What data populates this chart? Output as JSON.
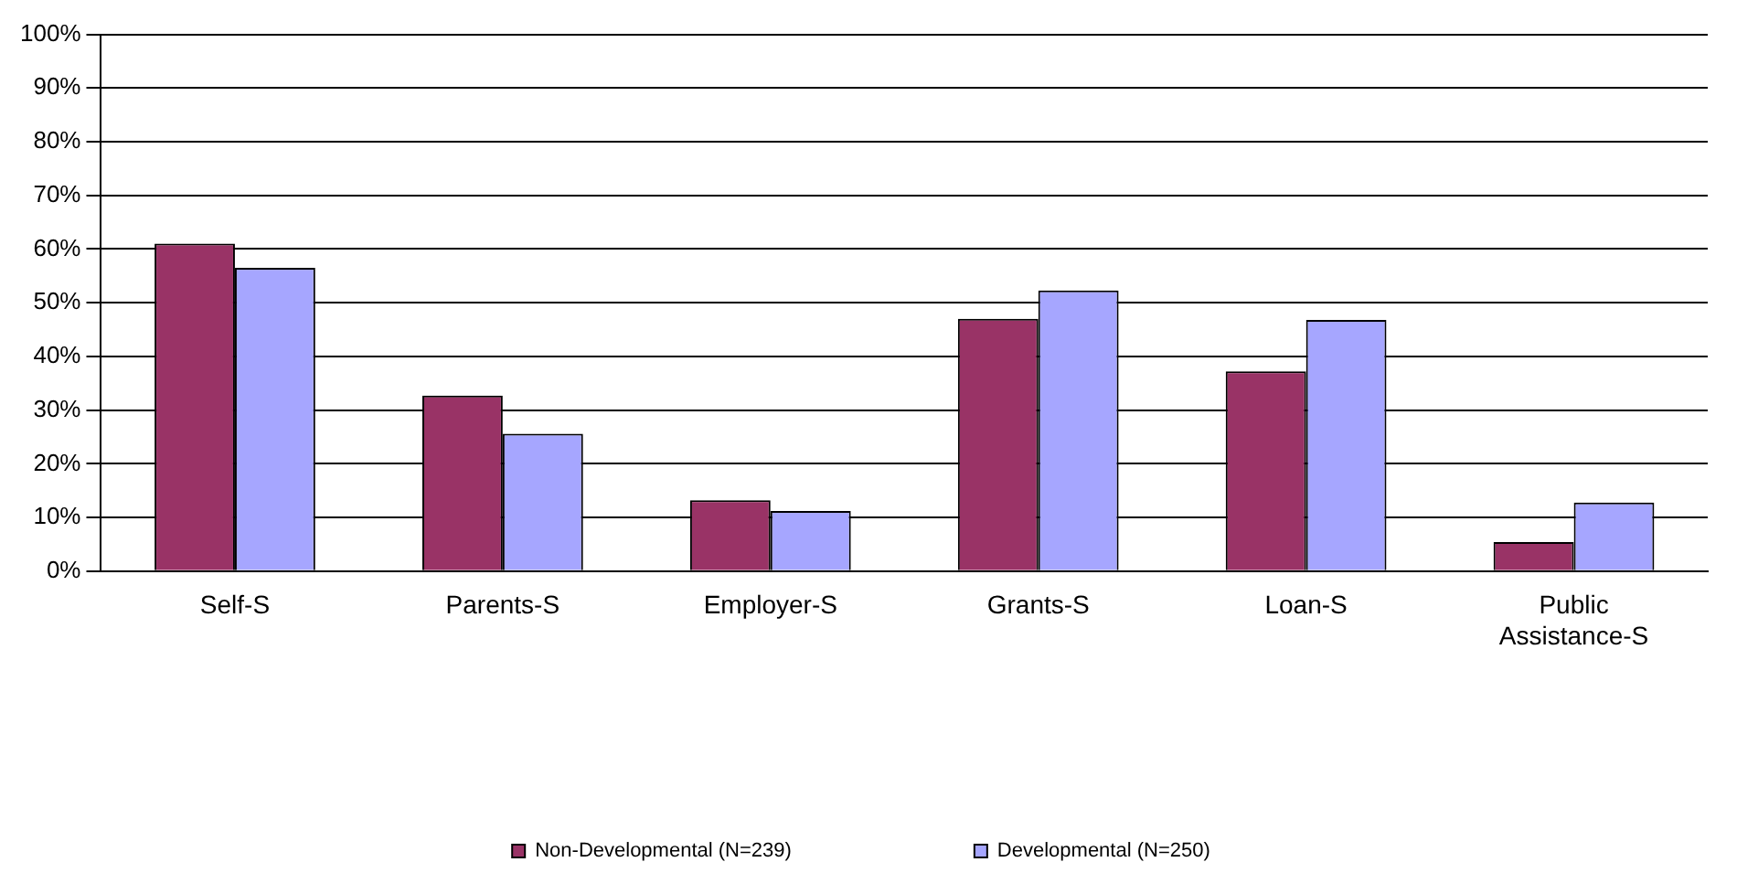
{
  "chart_data": {
    "type": "bar",
    "categories": [
      "Self-S",
      "Parents-S",
      "Employer-S",
      "Grants-S",
      "Loan-S",
      "Public Assistance-S"
    ],
    "series": [
      {
        "name": "Non-Developmental (N=239)",
        "color": "#993366",
        "values": [
          61,
          32.7,
          13.2,
          47,
          37.2,
          5.4
        ]
      },
      {
        "name": "Developmental (N=250)",
        "color": "#a6a6ff",
        "values": [
          56.5,
          25.6,
          11.2,
          52.3,
          46.8,
          12.8
        ]
      }
    ],
    "ylim": [
      0,
      100
    ],
    "yticks": [
      {
        "value": 0,
        "label": "0%"
      },
      {
        "value": 10,
        "label": "10%"
      },
      {
        "value": 20,
        "label": "20%"
      },
      {
        "value": 30,
        "label": "30%"
      },
      {
        "value": 40,
        "label": "40%"
      },
      {
        "value": 50,
        "label": "50%"
      },
      {
        "value": 60,
        "label": "60%"
      },
      {
        "value": 70,
        "label": "70%"
      },
      {
        "value": 80,
        "label": "80%"
      },
      {
        "value": 90,
        "label": "90%"
      },
      {
        "value": 100,
        "label": "100%"
      }
    ],
    "grid": "y",
    "legend": "bottom"
  }
}
